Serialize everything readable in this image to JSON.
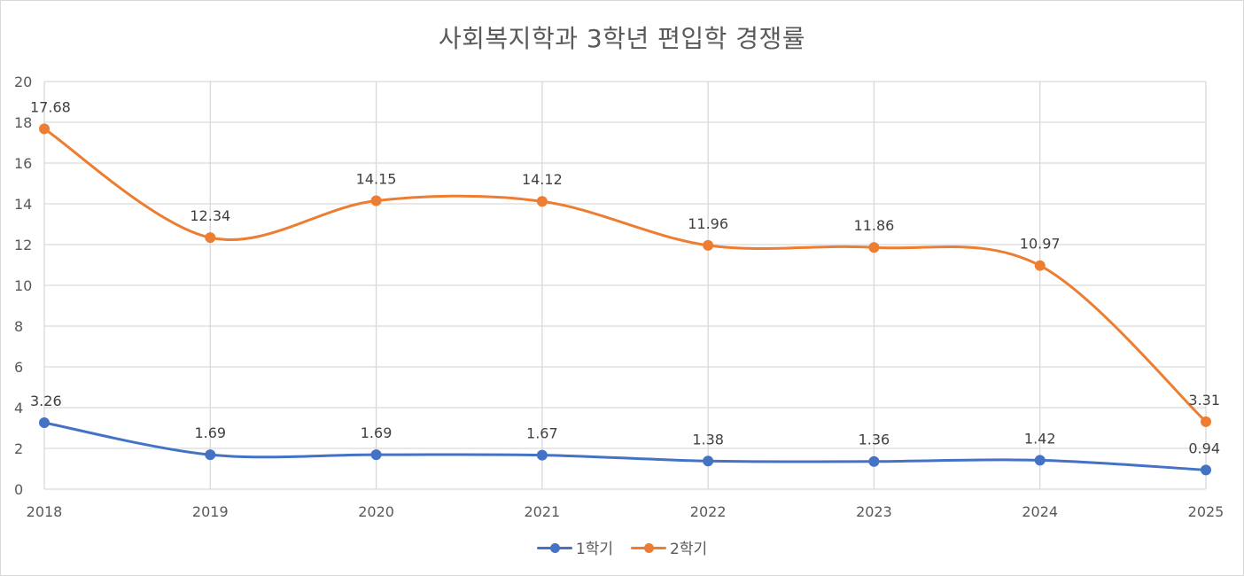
{
  "chart_data": {
    "type": "line",
    "title": "사회복지학과 3학년 편입학 경쟁률",
    "categories": [
      "2018",
      "2019",
      "2020",
      "2021",
      "2022",
      "2023",
      "2024",
      "2025"
    ],
    "ylim": [
      0,
      20
    ],
    "yticks": [
      0,
      2,
      4,
      6,
      8,
      10,
      12,
      14,
      16,
      18,
      20
    ],
    "ytick_labels": [
      "0",
      "2",
      "4",
      "6",
      "8",
      "10",
      "12",
      "14",
      "16",
      "18",
      "20"
    ],
    "grid": true,
    "smooth": true,
    "legend_position": "bottom",
    "series": [
      {
        "name": "1학기",
        "color": "#4472c4",
        "values": [
          3.26,
          1.69,
          1.69,
          1.67,
          1.38,
          1.36,
          1.42,
          0.94
        ],
        "labels": [
          "3.26",
          "1.69",
          "1.69",
          "1.67",
          "1.38",
          "1.36",
          "1.42",
          "0.94"
        ]
      },
      {
        "name": "2학기",
        "color": "#ed7d31",
        "values": [
          17.68,
          12.34,
          14.15,
          14.12,
          11.96,
          11.86,
          10.97,
          3.31
        ],
        "labels": [
          "17.68",
          "12.34",
          "14.15",
          "14.12",
          "11.96",
          "11.86",
          "10.97",
          "3.31"
        ]
      }
    ]
  }
}
